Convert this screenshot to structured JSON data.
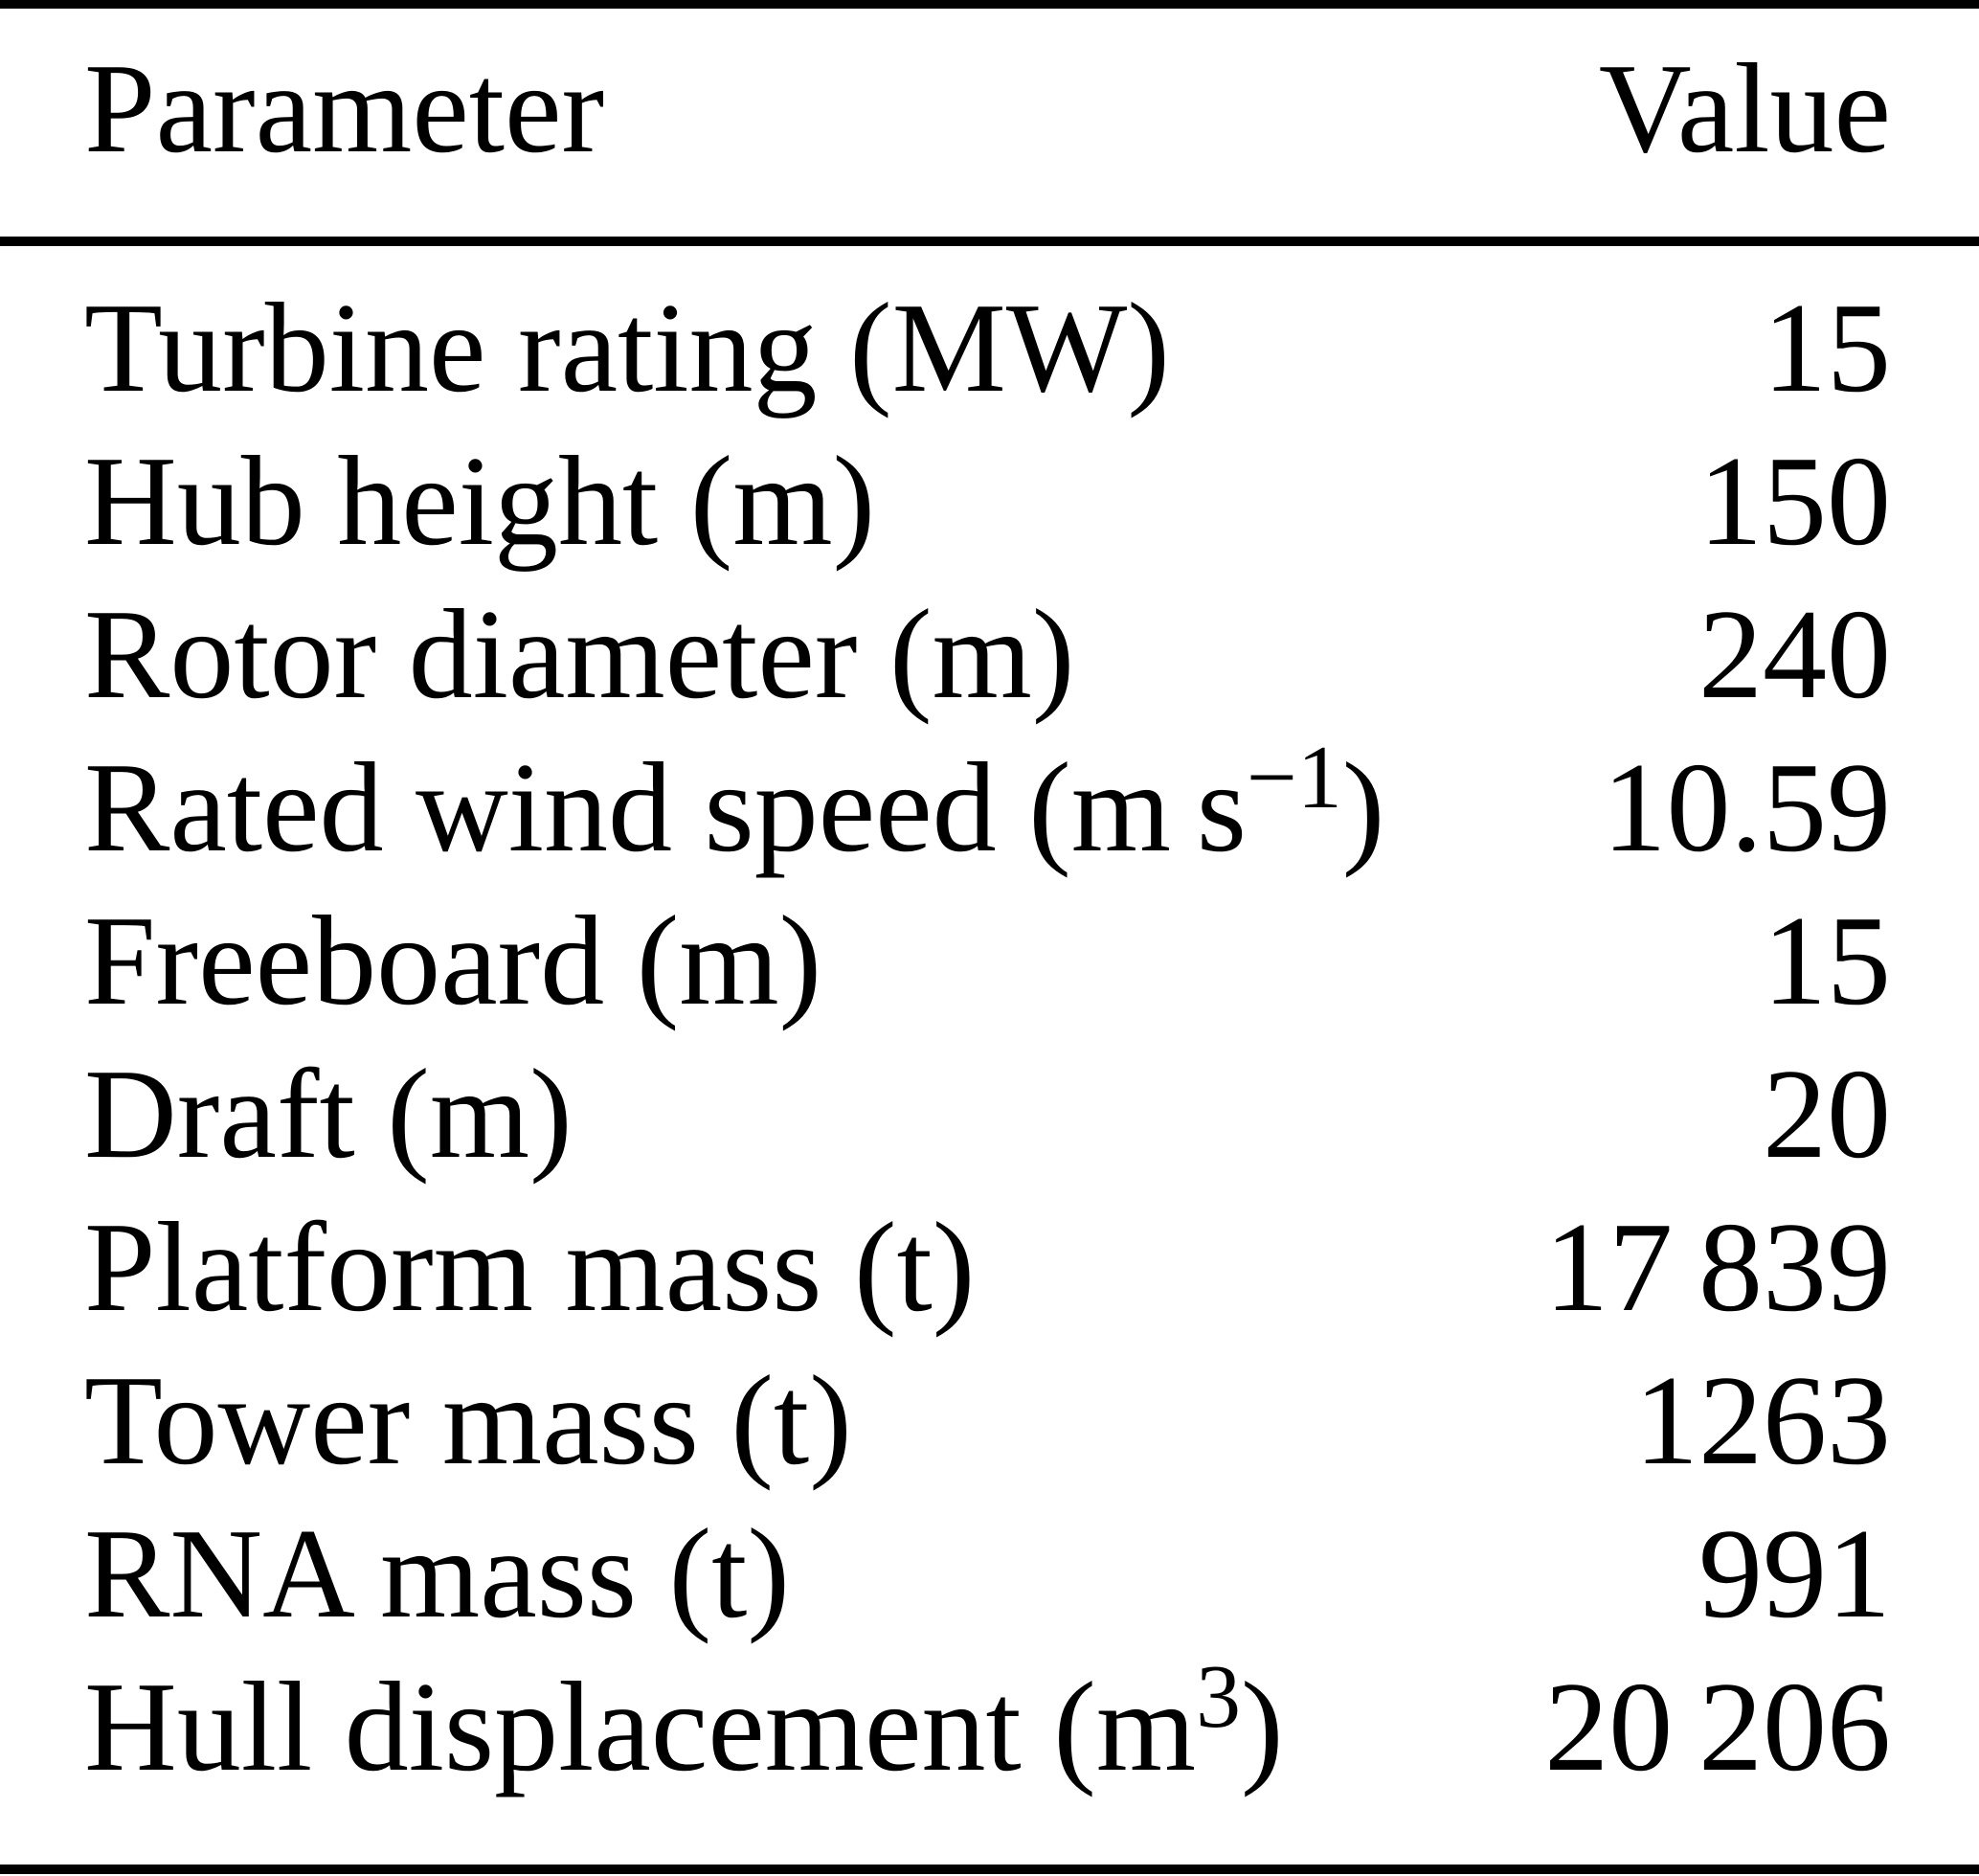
{
  "colors": {
    "text": "#000000",
    "background": "#ffffff",
    "rule": "#000000"
  },
  "table": {
    "columns": [
      "Parameter",
      "Value"
    ],
    "rows": [
      {
        "param": "Turbine rating (MW)",
        "param_sup": "",
        "param_close": "",
        "value": "15"
      },
      {
        "param": "Hub height (m)",
        "param_sup": "",
        "param_close": "",
        "value": "150"
      },
      {
        "param": "Rotor diameter (m)",
        "param_sup": "",
        "param_close": "",
        "value": "240"
      },
      {
        "param": "Rated wind speed (m s",
        "param_sup": "−1",
        "param_close": ")",
        "value": "10.59"
      },
      {
        "param": "Freeboard (m)",
        "param_sup": "",
        "param_close": "",
        "value": "15"
      },
      {
        "param": "Draft (m)",
        "param_sup": "",
        "param_close": "",
        "value": "20"
      },
      {
        "param": "Platform mass (t)",
        "param_sup": "",
        "param_close": "",
        "value": "17 839"
      },
      {
        "param": "Tower mass (t)",
        "param_sup": "",
        "param_close": "",
        "value": "1263"
      },
      {
        "param": "RNA mass (t)",
        "param_sup": "",
        "param_close": "",
        "value": "991"
      },
      {
        "param": "Hull displacement (m",
        "param_sup": "3",
        "param_close": ")",
        "value": "20 206"
      }
    ]
  }
}
